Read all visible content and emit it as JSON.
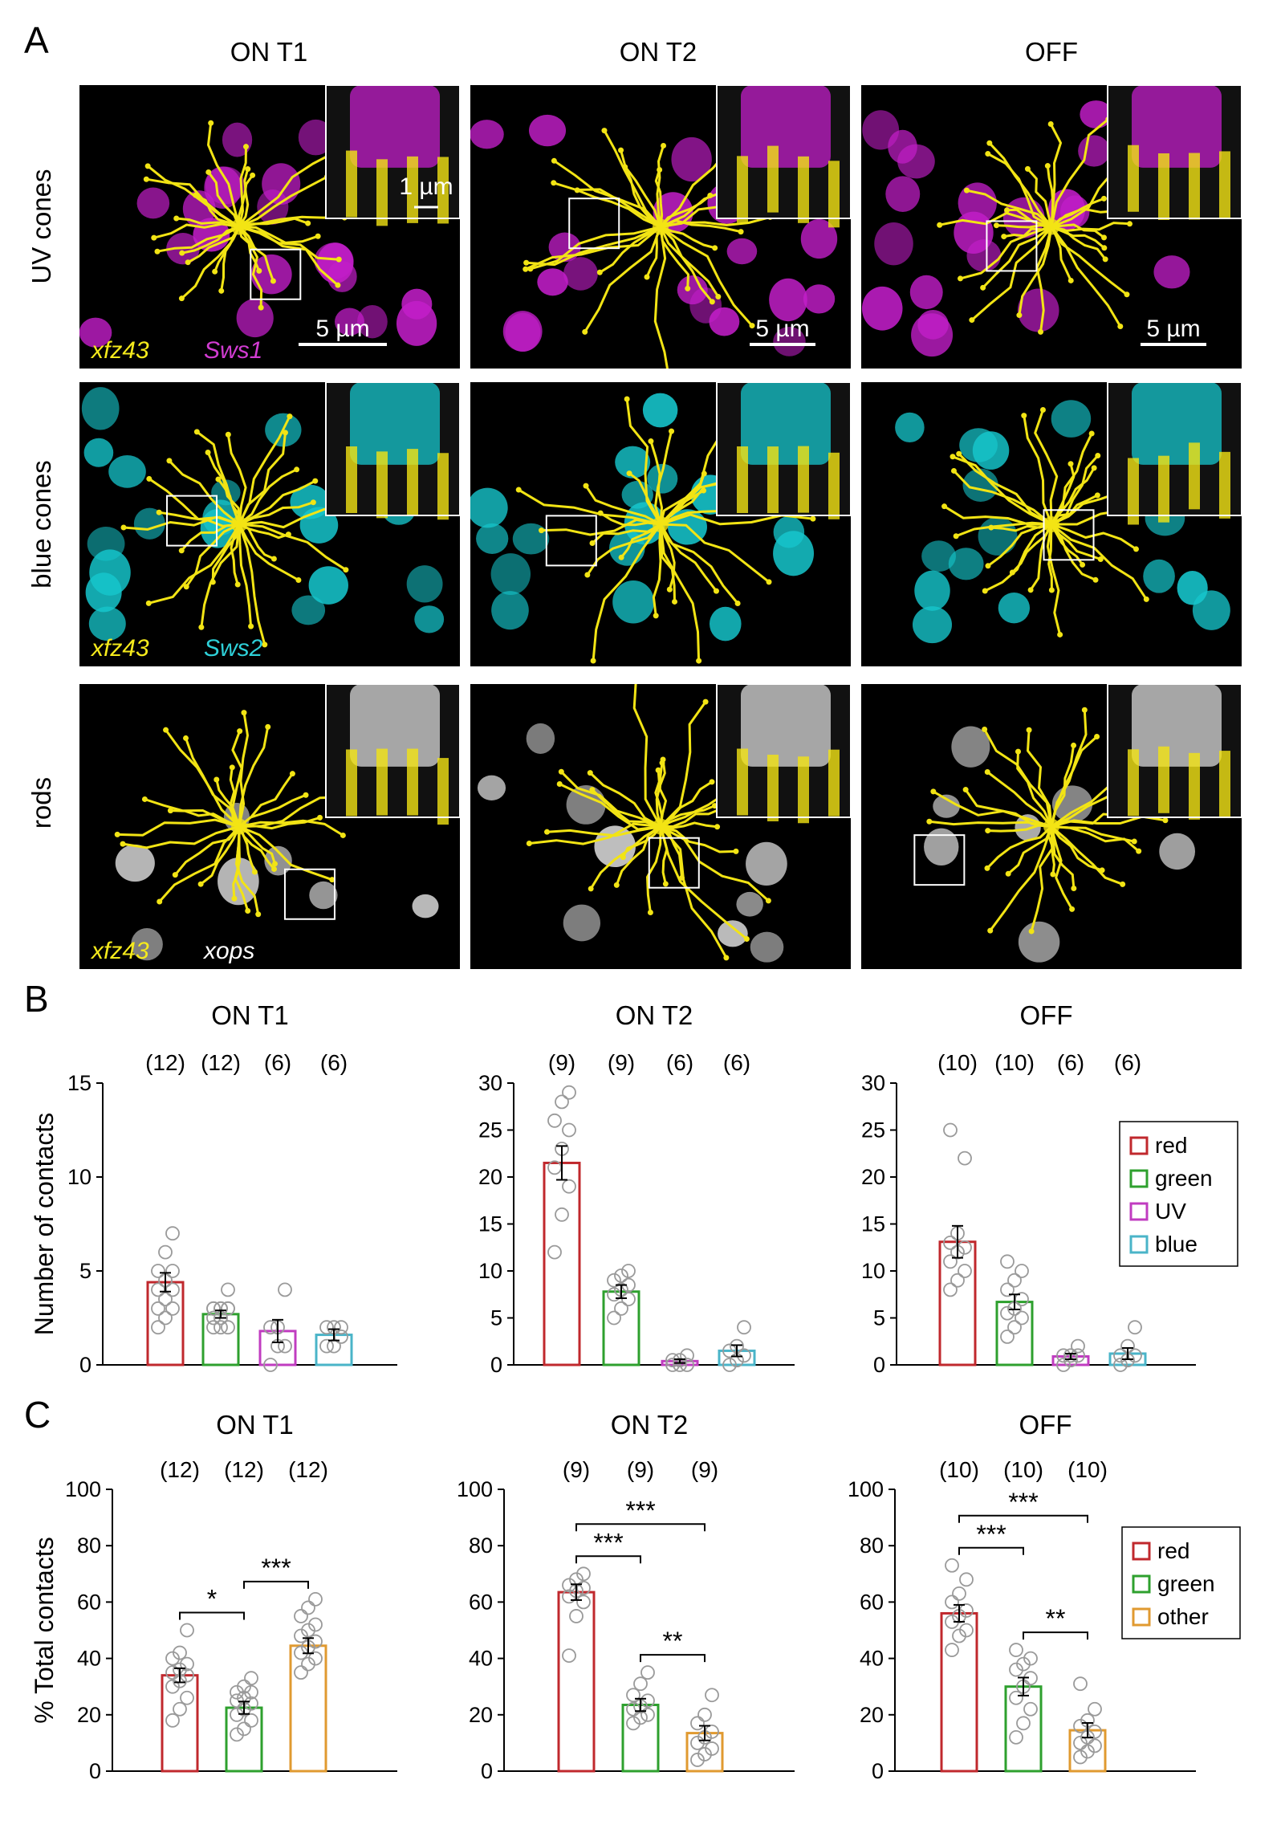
{
  "panels": {
    "A": "A",
    "B": "B",
    "C": "C"
  },
  "columns": [
    "ON T1",
    "ON T2",
    "OFF"
  ],
  "rows": [
    "UV cones",
    "blue cones",
    "rods"
  ],
  "markers": [
    {
      "left": "xfz43",
      "right": "Sws1",
      "left_color": "#f5ea1c",
      "right_color": "#d23cd2"
    },
    {
      "left": "xfz43",
      "right": "Sws2",
      "left_color": "#f5ea1c",
      "right_color": "#2ed0d8"
    },
    {
      "left": "xfz43",
      "right": "xops",
      "left_color": "#f5ea1c",
      "right_color": "#ffffff"
    }
  ],
  "scale_bars": {
    "main": "5 µm",
    "inset": "1 µm"
  },
  "colors": {
    "red": "#c0282d",
    "green": "#2ea02e",
    "UV": "#c03cc0",
    "blue": "#4ab4c8",
    "other": "#e09a30",
    "uv_cells": "#c21ec8",
    "blue_cells": "#16c6cc",
    "rod_cells": "#d8d8d8",
    "cell_yellow": "#f2e414"
  },
  "chart_data": [
    {
      "panel": "B",
      "title": "ON T1",
      "type": "bar",
      "ylabel": "Number of contacts",
      "ylim": [
        0,
        15
      ],
      "yticks": [
        0,
        5,
        10,
        15
      ],
      "categories": [
        "red",
        "green",
        "UV",
        "blue"
      ],
      "n": [
        "(12)",
        "(12)",
        "(6)",
        "(6)"
      ],
      "values": [
        4.4,
        2.7,
        1.8,
        1.6
      ],
      "sem": [
        0.5,
        0.2,
        0.6,
        0.3
      ],
      "points": [
        [
          2,
          2.5,
          3,
          3,
          3.5,
          4,
          4,
          4.5,
          5,
          5,
          6,
          7
        ],
        [
          2,
          2,
          2,
          2.5,
          2.5,
          3,
          3,
          3,
          3,
          3,
          3,
          4
        ],
        [
          0,
          1,
          1,
          2,
          2,
          4
        ],
        [
          1,
          1,
          1.5,
          2,
          2,
          2
        ]
      ],
      "legend": []
    },
    {
      "panel": "B",
      "title": "ON T2",
      "type": "bar",
      "ylabel": "",
      "ylim": [
        0,
        30
      ],
      "yticks": [
        0,
        5,
        10,
        15,
        20,
        25,
        30
      ],
      "categories": [
        "red",
        "green",
        "UV",
        "blue"
      ],
      "n": [
        "(9)",
        "(9)",
        "(6)",
        "(6)"
      ],
      "values": [
        21.5,
        7.8,
        0.4,
        1.5
      ],
      "sem": [
        1.8,
        0.7,
        0.2,
        0.6
      ],
      "points": [
        [
          12,
          16,
          19,
          21,
          23,
          25,
          26,
          28,
          29
        ],
        [
          5,
          6,
          7,
          7.5,
          8,
          8.5,
          9,
          9.5,
          10
        ],
        [
          0,
          0,
          0,
          0.5,
          0.5,
          1
        ],
        [
          0,
          0.5,
          1,
          1.5,
          2,
          4
        ]
      ],
      "legend": []
    },
    {
      "panel": "B",
      "title": "OFF",
      "type": "bar",
      "ylabel": "",
      "ylim": [
        0,
        30
      ],
      "yticks": [
        0,
        5,
        10,
        15,
        20,
        25,
        30
      ],
      "categories": [
        "red",
        "green",
        "UV",
        "blue"
      ],
      "n": [
        "(10)",
        "(10)",
        "(6)",
        "(6)"
      ],
      "values": [
        13.1,
        6.7,
        0.9,
        1.2
      ],
      "sem": [
        1.7,
        0.8,
        0.3,
        0.6
      ],
      "points": [
        [
          8,
          9,
          10,
          11,
          12,
          12.5,
          13,
          14,
          22,
          25
        ],
        [
          3,
          4,
          5,
          5.5,
          6,
          7,
          8,
          9,
          10,
          11
        ],
        [
          0,
          0.5,
          1,
          1,
          1,
          2
        ],
        [
          0,
          0.5,
          1,
          1,
          2,
          4
        ]
      ],
      "legend": [
        "red",
        "green",
        "UV",
        "blue"
      ]
    },
    {
      "panel": "C",
      "title": "ON T1",
      "type": "bar",
      "ylabel": "% Total contacts",
      "ylim": [
        0,
        100
      ],
      "yticks": [
        0,
        20,
        40,
        60,
        80,
        100
      ],
      "categories": [
        "red",
        "green",
        "other"
      ],
      "n": [
        "(12)",
        "(12)",
        "(12)"
      ],
      "values": [
        34,
        22.5,
        44.5
      ],
      "sem": [
        2.5,
        2.2,
        2.7
      ],
      "points": [
        [
          18,
          22,
          26,
          30,
          32,
          34,
          35,
          36,
          38,
          40,
          42,
          50
        ],
        [
          13,
          15,
          18,
          20,
          22,
          24,
          25,
          26,
          28,
          28,
          30,
          33
        ],
        [
          35,
          38,
          40,
          42,
          44,
          46,
          48,
          50,
          52,
          55,
          58,
          61
        ]
      ],
      "significance": [
        {
          "from": 0,
          "to": 1,
          "label": "*"
        },
        {
          "from": 1,
          "to": 2,
          "label": "***"
        }
      ],
      "legend": []
    },
    {
      "panel": "C",
      "title": "ON T2",
      "type": "bar",
      "ylabel": "",
      "ylim": [
        0,
        100
      ],
      "yticks": [
        0,
        20,
        40,
        60,
        80,
        100
      ],
      "categories": [
        "red",
        "green",
        "other"
      ],
      "n": [
        "(9)",
        "(9)",
        "(9)"
      ],
      "values": [
        63.5,
        23.5,
        13.5
      ],
      "sem": [
        2.8,
        2.2,
        2.6
      ],
      "points": [
        [
          41,
          55,
          60,
          62,
          64,
          65,
          66,
          68,
          70
        ],
        [
          17,
          19,
          20,
          22,
          23,
          25,
          27,
          31,
          35
        ],
        [
          4,
          6,
          8,
          10,
          12,
          14,
          17,
          20,
          27
        ]
      ],
      "significance": [
        {
          "from": 0,
          "to": 1,
          "label": "***"
        },
        {
          "from": 0,
          "to": 2,
          "label": "***"
        },
        {
          "from": 1,
          "to": 2,
          "label": "**"
        }
      ],
      "legend": []
    },
    {
      "panel": "C",
      "title": "OFF",
      "type": "bar",
      "ylabel": "",
      "ylim": [
        0,
        100
      ],
      "yticks": [
        0,
        20,
        40,
        60,
        80,
        100
      ],
      "categories": [
        "red",
        "green",
        "other"
      ],
      "n": [
        "(10)",
        "(10)",
        "(10)"
      ],
      "values": [
        56,
        30,
        14.5
      ],
      "sem": [
        3,
        3.2,
        2.6
      ],
      "points": [
        [
          43,
          48,
          50,
          53,
          55,
          57,
          60,
          63,
          68,
          73
        ],
        [
          12,
          17,
          22,
          26,
          30,
          33,
          36,
          38,
          40,
          43
        ],
        [
          5,
          7,
          9,
          10,
          12,
          14,
          16,
          18,
          22,
          31
        ]
      ],
      "significance": [
        {
          "from": 0,
          "to": 1,
          "label": "***"
        },
        {
          "from": 0,
          "to": 2,
          "label": "***"
        },
        {
          "from": 1,
          "to": 2,
          "label": "**"
        }
      ],
      "legend": [
        "red",
        "green",
        "other"
      ]
    }
  ]
}
